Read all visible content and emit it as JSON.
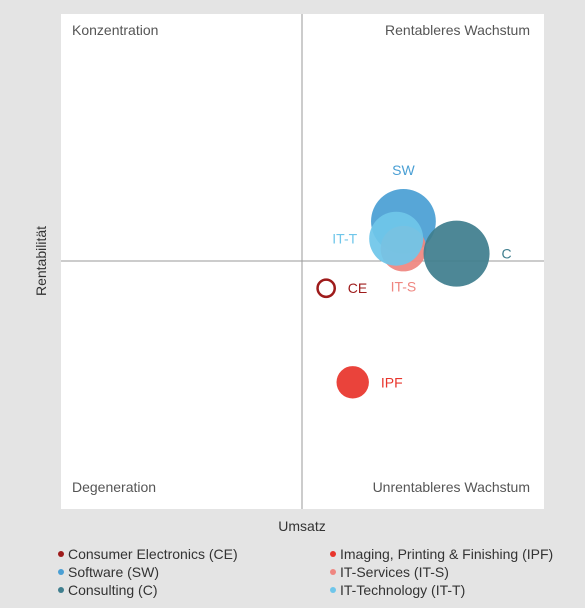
{
  "chart_data": {
    "type": "bubble",
    "xlabel": "Umsatz",
    "ylabel": "Rentabilität",
    "xlim": [
      -10,
      10
    ],
    "ylim": [
      -10,
      10
    ],
    "grid": false,
    "quadrants": {
      "top_left": "Konzentration",
      "top_right": "Rentableres Wachstum",
      "bottom_left": "Degeneration",
      "bottom_right": "Unrentableres Wachstum"
    },
    "series": [
      {
        "name": "Consumer Electronics (CE)",
        "label": "CE",
        "x": 1.0,
        "y": -1.1,
        "size": 0.8,
        "color": "#9e1b1b",
        "hollow": true,
        "label_pos": "right"
      },
      {
        "name": "Imaging, Printing & Finishing (IPF)",
        "label": "IPF",
        "x": 2.1,
        "y": -4.9,
        "size": 1.35,
        "color": "#e8352c",
        "hollow": false,
        "label_pos": "right"
      },
      {
        "name": "Software (SW)",
        "label": "SW",
        "x": 4.2,
        "y": 1.6,
        "size": 2.7,
        "color": "#4a9fd4",
        "hollow": false,
        "label_pos": "top"
      },
      {
        "name": "IT-Services (IT-S)",
        "label": "IT-S",
        "x": 4.2,
        "y": 0.5,
        "size": 1.9,
        "color": "#ef8680",
        "hollow": false,
        "label_pos": "bottom"
      },
      {
        "name": "Consulting (C)",
        "label": "C",
        "x": 6.4,
        "y": 0.3,
        "size": 2.75,
        "color": "#3f7e8e",
        "hollow": false,
        "label_pos": "right"
      },
      {
        "name": "IT-Technology (IT-T)",
        "label": "IT-T",
        "x": 3.9,
        "y": 0.9,
        "size": 2.25,
        "color": "#6fc6ea",
        "hollow": false,
        "label_pos": "left"
      }
    ],
    "legend": {
      "placement": "bottom",
      "items": [
        {
          "label": "Consumer Electronics (CE)",
          "color": "#9e1b1b"
        },
        {
          "label": "Imaging, Printing & Finishing (IPF)",
          "color": "#e8352c"
        },
        {
          "label": "Software (SW)",
          "color": "#4a9fd4"
        },
        {
          "label": "IT-Services (IT-S)",
          "color": "#ef8680"
        },
        {
          "label": "Consulting (C)",
          "color": "#3f7e8e"
        },
        {
          "label": "IT-Technology (IT-T)",
          "color": "#6fc6ea"
        }
      ]
    }
  }
}
